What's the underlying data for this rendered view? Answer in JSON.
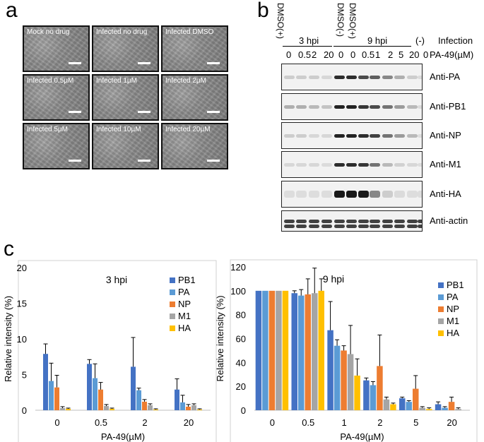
{
  "panels": {
    "a": "a",
    "b": "b",
    "c": "c"
  },
  "panel_a": {
    "images": [
      "Mock no drug",
      "Infected no drug",
      "Infected DMSO",
      "Infected 0.5µM",
      "Infected 1µM",
      "Infected 2µM",
      "Infected 5µM",
      "Infected 10µM",
      "Infected 20µM"
    ]
  },
  "panel_b": {
    "rotated_labels": [
      "DMSO(+)",
      "DMSO(-)",
      "DMSO(+)"
    ],
    "hpi3": "3 hpi",
    "hpi9": "9 hpi",
    "neg": "(-)",
    "infection": "Infection",
    "conc_label": "PA-49(µM)",
    "concs": [
      "0",
      "0.5",
      "2",
      "20",
      "0",
      "0",
      "0.5",
      "1",
      "2",
      "5",
      "20",
      "0"
    ],
    "rows": [
      "Anti-PA",
      "Anti-PB1",
      "Anti-NP",
      "Anti-M1",
      "Anti-HA",
      "Anti-actin"
    ]
  },
  "colors": {
    "PB1": "#4472c4",
    "PA": "#5b9bd5",
    "NP": "#ed7d31",
    "M1": "#a5a5a5",
    "HA": "#ffc000"
  },
  "chart_data": [
    {
      "type": "bar",
      "title": "3 hpi",
      "xlabel": "PA-49(µM)",
      "ylabel": "Relative intensity (%)",
      "ylim": [
        0,
        20
      ],
      "yticks": [
        "0",
        "5",
        "10",
        "15",
        "20"
      ],
      "categories": [
        "0",
        "0.5",
        "2",
        "20"
      ],
      "series": [
        {
          "name": "PB1",
          "values": [
            7.9,
            6.5,
            6.1,
            2.9
          ],
          "err": [
            1.4,
            0.6,
            4.1,
            1.5
          ]
        },
        {
          "name": "PA",
          "values": [
            4.1,
            4.5,
            2.8,
            1.1
          ],
          "err": [
            2.5,
            2.0,
            0.3,
            1.0
          ]
        },
        {
          "name": "NP",
          "values": [
            3.2,
            2.9,
            1.2,
            0.5
          ],
          "err": [
            1.7,
            1.0,
            0.3,
            0.3
          ]
        },
        {
          "name": "M1",
          "values": [
            0.3,
            0.6,
            0.7,
            0.7
          ],
          "err": [
            0.2,
            0.2,
            0.2,
            0.2
          ]
        },
        {
          "name": "HA",
          "values": [
            0.2,
            0.2,
            0.1,
            0.1
          ],
          "err": [
            0.1,
            0.1,
            0.1,
            0.1
          ]
        }
      ]
    },
    {
      "type": "bar",
      "title": "9 hpi",
      "xlabel": "PA-49(µM)",
      "ylabel": "Relative intensity (%)",
      "ylim": [
        0,
        120
      ],
      "yticks": [
        "0",
        "20",
        "40",
        "60",
        "80",
        "100",
        "120"
      ],
      "categories": [
        "0",
        "0.5",
        "1",
        "2",
        "5",
        "20"
      ],
      "series": [
        {
          "name": "PB1",
          "values": [
            100,
            98,
            67,
            25,
            10,
            5
          ],
          "err": [
            0,
            2,
            24,
            2,
            1,
            2
          ]
        },
        {
          "name": "PA",
          "values": [
            100,
            96,
            54,
            21,
            7,
            2
          ],
          "err": [
            0,
            5,
            5,
            3,
            1,
            1
          ]
        },
        {
          "name": "NP",
          "values": [
            100,
            97,
            50,
            37,
            18,
            7
          ],
          "err": [
            0,
            13,
            4,
            26,
            11,
            4
          ]
        },
        {
          "name": "M1",
          "values": [
            100,
            98,
            47,
            9,
            2,
            1
          ],
          "err": [
            0,
            21,
            24,
            2,
            1,
            1
          ]
        },
        {
          "name": "HA",
          "values": [
            100,
            100,
            29,
            5,
            1,
            0
          ],
          "err": [
            0,
            10,
            14,
            1,
            1,
            0
          ]
        }
      ]
    }
  ]
}
